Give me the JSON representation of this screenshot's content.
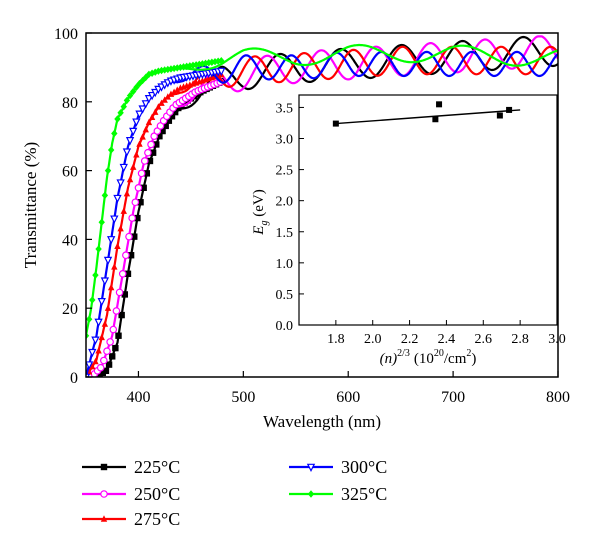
{
  "chart_data": [
    {
      "type": "line",
      "xlabel": "Wavelength (nm)",
      "ylabel": "Transmittance (%)",
      "xlim": [
        350,
        800
      ],
      "ylim": [
        0,
        100
      ],
      "xticks": [
        "400",
        "500",
        "600",
        "700",
        "800"
      ],
      "yticks": [
        "0",
        "20",
        "40",
        "60",
        "80",
        "100"
      ],
      "grid": false,
      "legend_placement": "below",
      "series": [
        {
          "name": "225°C",
          "color": "#000000",
          "marker": "square",
          "x": [
            360,
            370,
            380,
            390,
            400,
            410,
            420,
            430,
            440,
            450,
            460,
            480,
            500,
            550,
            600,
            650,
            700,
            750,
            800
          ],
          "y": [
            0,
            2,
            10,
            30,
            48,
            62,
            70,
            75,
            79,
            81,
            83,
            86,
            88,
            90,
            91,
            92,
            93,
            94,
            95
          ]
        },
        {
          "name": "250°C",
          "color": "#ff00ff",
          "marker": "open-circle",
          "x": [
            355,
            365,
            375,
            385,
            395,
            405,
            415,
            425,
            435,
            445,
            455,
            480,
            500,
            550,
            600,
            650,
            700,
            750,
            800
          ],
          "y": [
            0,
            3,
            12,
            30,
            48,
            62,
            70,
            75,
            79,
            81,
            83,
            86,
            88,
            90,
            91,
            92,
            93,
            94,
            95
          ]
        },
        {
          "name": "275°C",
          "color": "#ff0000",
          "marker": "triangle-up",
          "x": [
            350,
            360,
            370,
            380,
            390,
            400,
            410,
            420,
            430,
            440,
            460,
            480,
            500,
            550,
            600,
            650,
            700,
            750,
            800
          ],
          "y": [
            0,
            5,
            18,
            38,
            55,
            67,
            74,
            79,
            82,
            84,
            86,
            88,
            89,
            90,
            91,
            92,
            92,
            92,
            92
          ]
        },
        {
          "name": "300°C",
          "color": "#0000ff",
          "marker": "triangle-down-open",
          "x": [
            350,
            360,
            370,
            380,
            390,
            400,
            410,
            420,
            430,
            440,
            460,
            480,
            500,
            550,
            600,
            650,
            700,
            750,
            800
          ],
          "y": [
            0,
            12,
            32,
            52,
            67,
            76,
            81,
            84,
            86,
            87,
            88,
            89,
            90,
            90,
            91,
            91,
            91,
            91,
            91
          ]
        },
        {
          "name": "325°C",
          "color": "#00ff00",
          "marker": "diamond",
          "x": [
            350,
            355,
            360,
            365,
            370,
            375,
            380,
            390,
            400,
            410,
            420,
            440,
            460,
            480,
            500,
            550,
            600,
            650,
            700,
            750,
            800
          ],
          "y": [
            12,
            20,
            32,
            45,
            58,
            68,
            75,
            81,
            85,
            88,
            89,
            90,
            91,
            92,
            93,
            93,
            94,
            94,
            94,
            93,
            93
          ]
        }
      ]
    },
    {
      "type": "scatter",
      "xlabel_parts": {
        "base": "(n)",
        "exp": "2/3",
        "unit_pre": "(10",
        "unit_exp": "20",
        "unit_mid": "/cm",
        "unit_exp2": "2",
        "unit_post": ")"
      },
      "ylabel_parts": {
        "main": "E",
        "sub": "g",
        "unit": " (eV)"
      },
      "xlim": [
        1.6,
        3.0
      ],
      "ylim": [
        0.0,
        3.7
      ],
      "xticks": [
        "1.8",
        "2.0",
        "2.2",
        "2.4",
        "2.6",
        "2.8",
        "3.0"
      ],
      "yticks": [
        "0.0",
        "0.5",
        "1.0",
        "1.5",
        "2.0",
        "2.5",
        "3.0",
        "3.5"
      ],
      "points": {
        "x": [
          1.8,
          2.34,
          2.36,
          2.69,
          2.74
        ],
        "y": [
          3.24,
          3.31,
          3.55,
          3.37,
          3.46
        ]
      },
      "fit_line": {
        "x": [
          1.8,
          2.8
        ],
        "y": [
          3.24,
          3.46
        ]
      }
    }
  ]
}
